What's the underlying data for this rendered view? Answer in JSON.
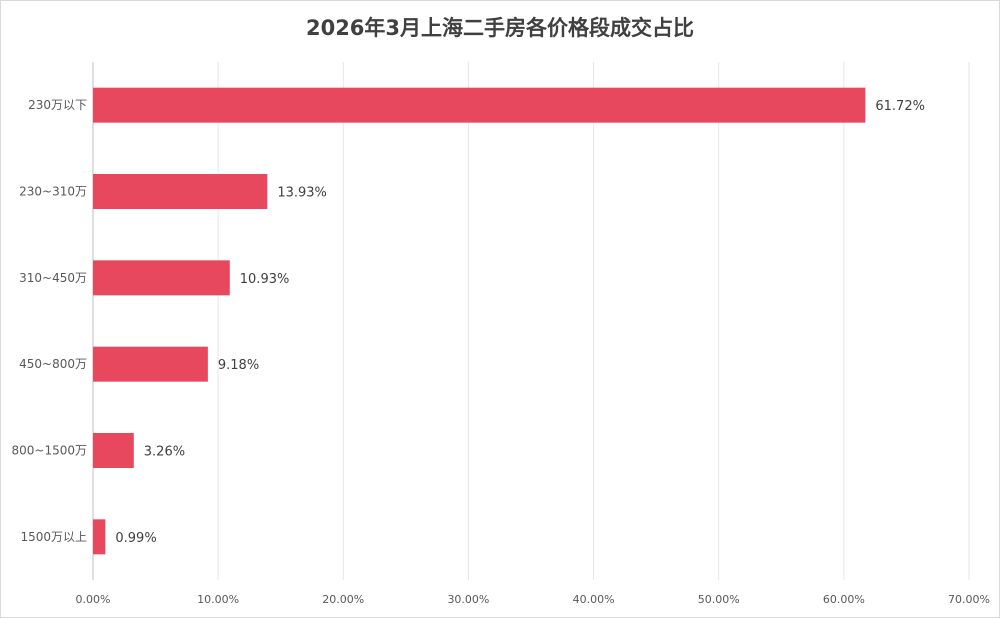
{
  "chart_data": {
    "type": "bar",
    "orientation": "horizontal",
    "title": "2026年3月上海二手房各价格段成交占比",
    "categories": [
      "230万以下",
      "230~310万",
      "310~450万",
      "450~800万",
      "800~1500万",
      "1500万以上"
    ],
    "values": [
      61.72,
      13.93,
      10.93,
      9.18,
      3.26,
      0.99
    ],
    "value_labels": [
      "61.72%",
      "13.93%",
      "10.93%",
      "9.18%",
      "3.26%",
      "0.99%"
    ],
    "x_ticks": [
      "0.00%",
      "10.00%",
      "20.00%",
      "30.00%",
      "40.00%",
      "50.00%",
      "60.00%",
      "70.00%"
    ],
    "xlim": [
      0,
      70
    ],
    "xlabel": "",
    "ylabel": "",
    "grid": "vertical",
    "bar_color": "#e8485e"
  }
}
